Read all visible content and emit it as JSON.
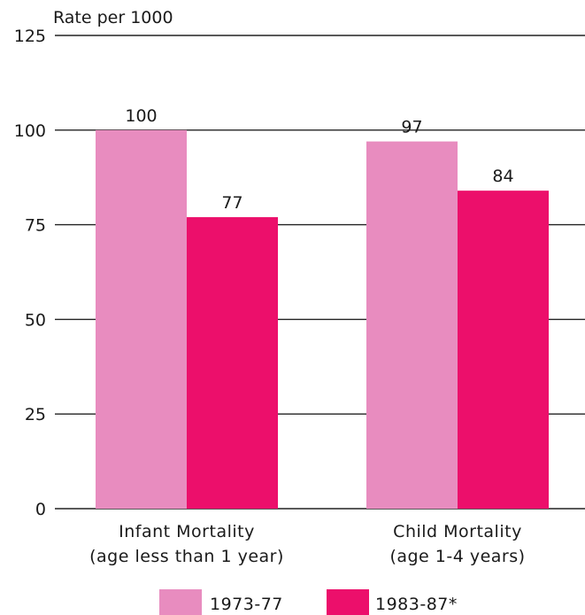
{
  "chart_data": {
    "type": "bar",
    "ylabel": "Rate per 1000",
    "ylim": [
      0,
      125
    ],
    "yticks": [
      0,
      25,
      50,
      75,
      100,
      125
    ],
    "grid": true,
    "categories": [
      [
        "Infant Mortality",
        "(age less than 1 year)"
      ],
      [
        "Child Mortality",
        "(age 1-4 years)"
      ]
    ],
    "series": [
      {
        "name": "1973-77",
        "values": [
          100,
          97
        ],
        "color": "#e88cbf"
      },
      {
        "name": "1983-87*",
        "values": [
          77,
          84
        ],
        "color": "#ec0f6b"
      }
    ],
    "legend_position": "bottom"
  }
}
